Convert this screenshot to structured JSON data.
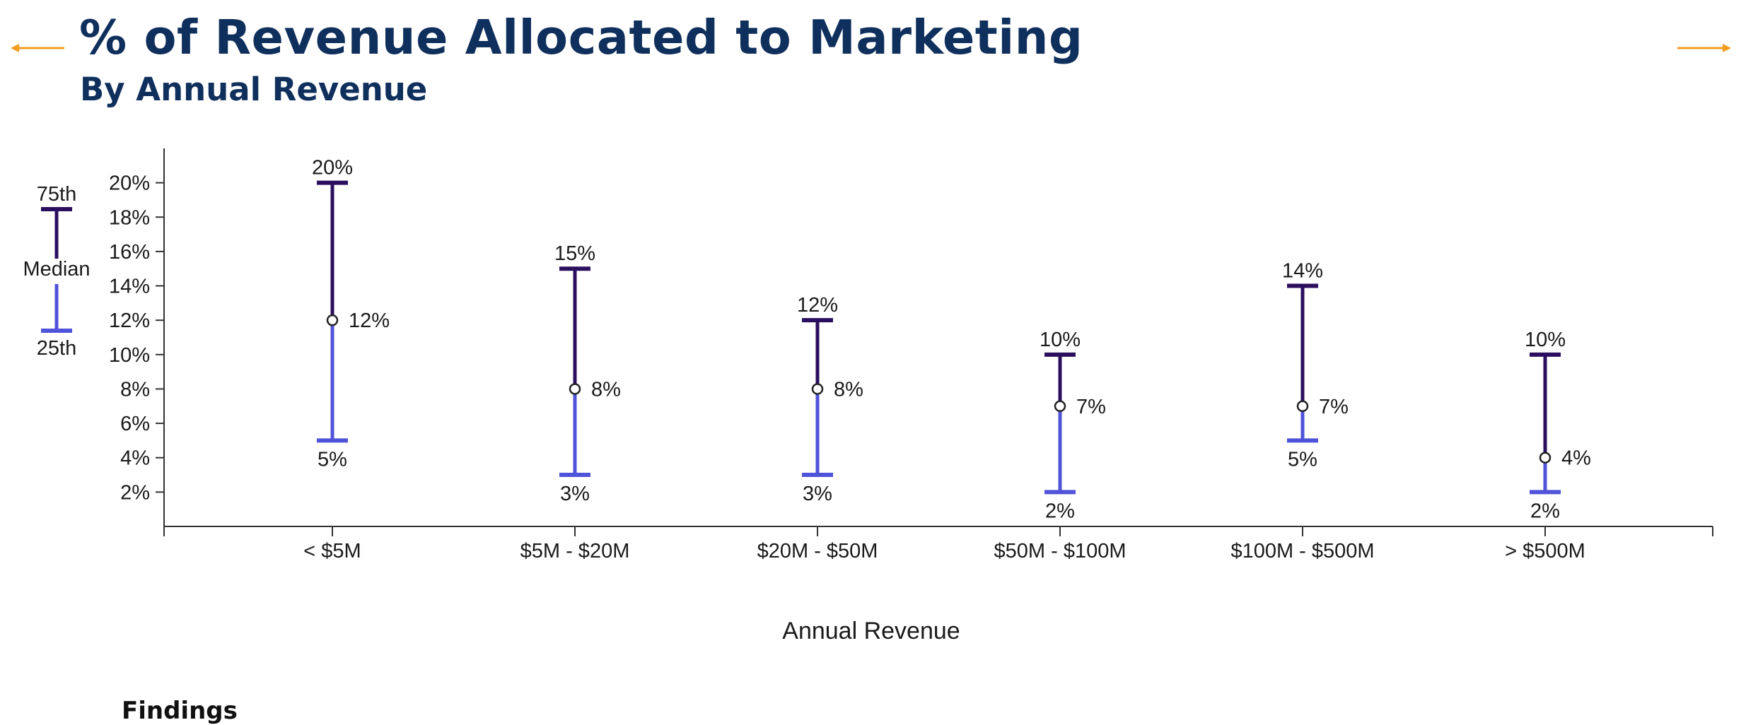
{
  "header": {
    "title": "% of Revenue Allocated to Marketing",
    "subtitle": "By Annual Revenue"
  },
  "nav": {
    "prev_icon": "arrow-left-icon",
    "next_icon": "arrow-right-icon",
    "arrow_color": "#f39c1f"
  },
  "findings_label": "Findings",
  "colors": {
    "upper": "#2b0f5e",
    "lower": "#4f53d9",
    "title": "#0f2f5c"
  },
  "legend": {
    "top_label": "75th",
    "mid_label": "Median",
    "bottom_label": "25th"
  },
  "chart_data": {
    "type": "range",
    "xlabel": "Annual Revenue",
    "ylabel": "",
    "ylim": [
      0,
      22
    ],
    "yticks": [
      2,
      4,
      6,
      8,
      10,
      12,
      14,
      16,
      18,
      20
    ],
    "ytick_labels": [
      "2%",
      "4%",
      "6%",
      "8%",
      "10%",
      "12%",
      "14%",
      "16%",
      "18%",
      "20%"
    ],
    "categories": [
      "< $5M",
      "$5M - $20M",
      "$20M - $50M",
      "$50M - $100M",
      "$100M - $500M",
      "> $500M"
    ],
    "series": [
      {
        "name": "75th",
        "values": [
          20,
          15,
          12,
          10,
          14,
          10
        ],
        "labels": [
          "20%",
          "15%",
          "12%",
          "10%",
          "14%",
          "10%"
        ]
      },
      {
        "name": "Median",
        "values": [
          12,
          8,
          8,
          7,
          7,
          4
        ],
        "labels": [
          "12%",
          "8%",
          "8%",
          "7%",
          "7%",
          "4%"
        ]
      },
      {
        "name": "25th",
        "values": [
          5,
          3,
          3,
          2,
          5,
          2
        ],
        "labels": [
          "5%",
          "3%",
          "3%",
          "2%",
          "5%",
          "2%"
        ]
      }
    ]
  }
}
